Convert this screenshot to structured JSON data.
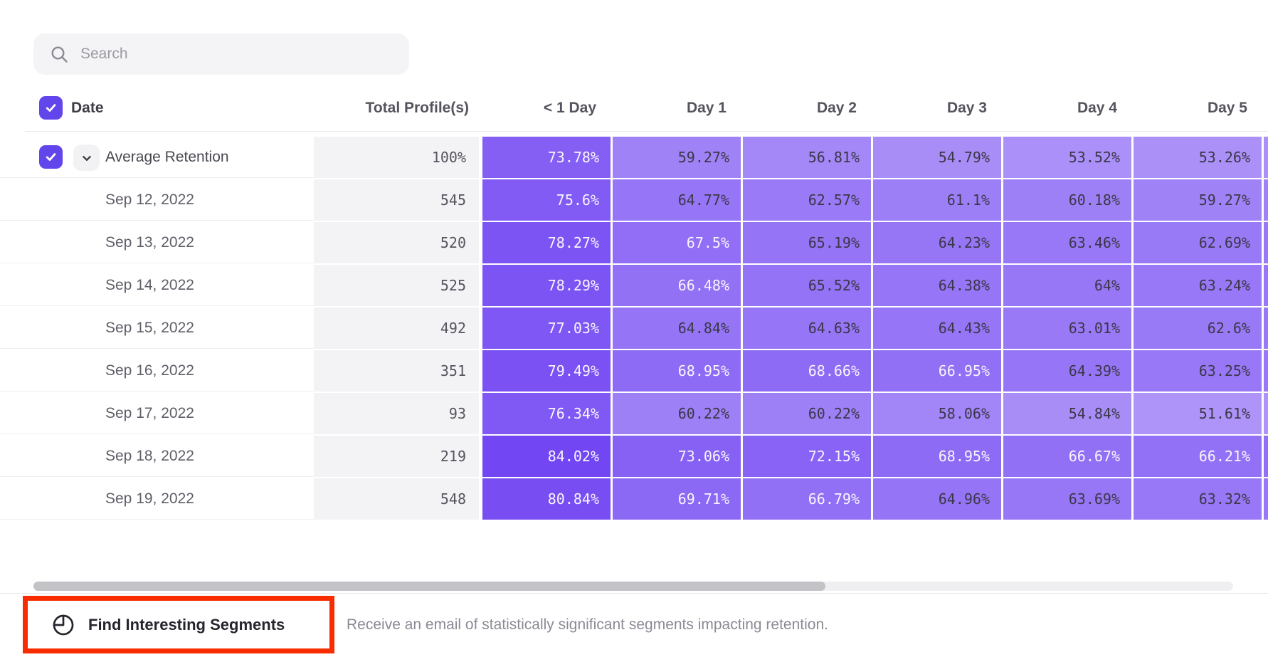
{
  "search": {
    "placeholder": "Search"
  },
  "table": {
    "columns": {
      "date": "Date",
      "total": "Total Profile(s)",
      "days": [
        "< 1 Day",
        "Day 1",
        "Day 2",
        "Day 3",
        "Day 4",
        "Day 5"
      ]
    },
    "average_row": {
      "label": "Average Retention",
      "total": "100%",
      "values": [
        "73.78%",
        "59.27%",
        "56.81%",
        "54.79%",
        "53.52%",
        "53.26%"
      ]
    },
    "rows": [
      {
        "date": "Sep 12, 2022",
        "total": "545",
        "values": [
          "75.6%",
          "64.77%",
          "62.57%",
          "61.1%",
          "60.18%",
          "59.27%"
        ]
      },
      {
        "date": "Sep 13, 2022",
        "total": "520",
        "values": [
          "78.27%",
          "67.5%",
          "65.19%",
          "64.23%",
          "63.46%",
          "62.69%"
        ]
      },
      {
        "date": "Sep 14, 2022",
        "total": "525",
        "values": [
          "78.29%",
          "66.48%",
          "65.52%",
          "64.38%",
          "64%",
          "63.24%"
        ]
      },
      {
        "date": "Sep 15, 2022",
        "total": "492",
        "values": [
          "77.03%",
          "64.84%",
          "64.63%",
          "64.43%",
          "63.01%",
          "62.6%"
        ]
      },
      {
        "date": "Sep 16, 2022",
        "total": "351",
        "values": [
          "79.49%",
          "68.95%",
          "68.66%",
          "66.95%",
          "64.39%",
          "63.25%"
        ]
      },
      {
        "date": "Sep 17, 2022",
        "total": "93",
        "values": [
          "76.34%",
          "60.22%",
          "60.22%",
          "58.06%",
          "54.84%",
          "51.61%"
        ]
      },
      {
        "date": "Sep 18, 2022",
        "total": "219",
        "values": [
          "84.02%",
          "73.06%",
          "72.15%",
          "68.95%",
          "66.67%",
          "66.21%"
        ]
      },
      {
        "date": "Sep 19, 2022",
        "total": "548",
        "values": [
          "80.84%",
          "69.71%",
          "66.79%",
          "64.96%",
          "63.69%",
          "63.32%"
        ]
      }
    ]
  },
  "footer": {
    "button_label": "Find Interesting Segments",
    "description": "Receive an email of statistically significant segments impacting retention."
  },
  "colors": {
    "accent_purple": "#6b3df2",
    "checkbox_purple": "#6246ec",
    "highlight_red": "#f92c00",
    "white_text_threshold": 66
  }
}
